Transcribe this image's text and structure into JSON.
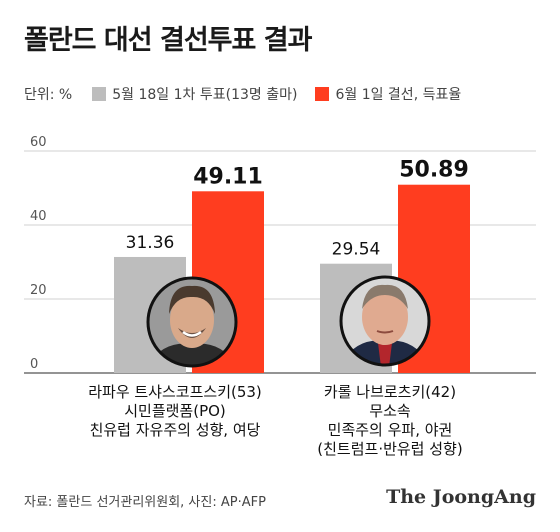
{
  "title": "폴란드 대선 결선투표 결과",
  "legend": {
    "unit": "단위: %",
    "items": [
      {
        "label": "5월 18일 1차 투표(13명 출마)",
        "color": "#bdbdbd"
      },
      {
        "label": "6월 1일 결선, 득표율",
        "color": "#ff3d1f"
      }
    ]
  },
  "chart_data": {
    "type": "bar",
    "title": "폴란드 대선 결선투표 결과",
    "ylabel": "단위: %",
    "ylim": [
      0,
      60
    ],
    "yticks": [
      0,
      20,
      40,
      60
    ],
    "grid": true,
    "legend_position": "top",
    "categories": [
      "라파우 트샤스코프스키(53)",
      "카롤 나브로츠키(42)"
    ],
    "series": [
      {
        "name": "5월 18일 1차 투표(13명 출마)",
        "values": [
          31.36,
          29.54
        ],
        "color": "#bdbdbd"
      },
      {
        "name": "6월 1일 결선, 득표율",
        "values": [
          49.11,
          50.89
        ],
        "color": "#ff3d1f"
      }
    ]
  },
  "candidates": [
    {
      "name": "라파우 트샤스코프스키(53)",
      "party": "시민플랫폼(PO)",
      "desc": "친유럽 자유주의 성향, 여당",
      "note": ""
    },
    {
      "name": "카롤 나브로츠키(42)",
      "party": "무소속",
      "desc": "민족주의 우파, 야권",
      "note": "(친트럼프·반유럽 성향)"
    }
  ],
  "source": "자료: 폴란드 선거관리위원회, 사진: AP·AFP",
  "brand": "The JoongAng"
}
